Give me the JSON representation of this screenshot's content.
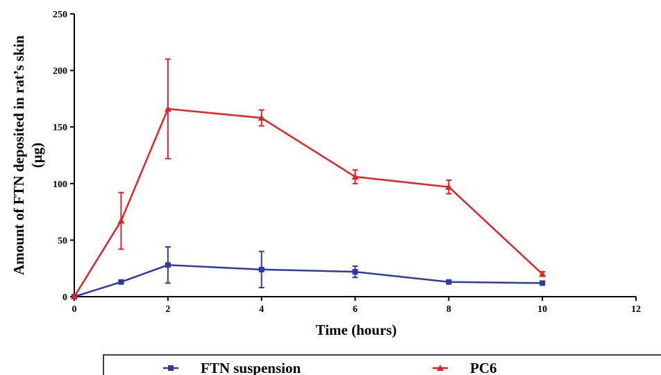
{
  "chart_data": {
    "type": "line",
    "xlabel": "Time (hours)",
    "ylabel_lines": [
      "Amount of FTN deposited in rat’s skin",
      "(µg)"
    ],
    "xlim": [
      0,
      12
    ],
    "ylim": [
      0,
      250
    ],
    "x_ticks": [
      0,
      2,
      4,
      6,
      8,
      10,
      12
    ],
    "y_ticks": [
      0,
      50,
      100,
      150,
      200,
      250
    ],
    "grid": false,
    "legend_position": "bottom",
    "series": [
      {
        "name": "FTN suspension",
        "color": "#2e3a9e",
        "marker": "square",
        "x": [
          0,
          1,
          2,
          4,
          6,
          8,
          10
        ],
        "y": [
          0,
          13,
          28,
          24,
          22,
          13,
          12
        ],
        "error": [
          0,
          1,
          16,
          16,
          5,
          1,
          1
        ]
      },
      {
        "name": "PC6",
        "color": "#e32227",
        "marker": "triangle",
        "x": [
          0,
          1,
          2,
          4,
          6,
          8,
          10
        ],
        "y": [
          0,
          67,
          166,
          158,
          106,
          97,
          20
        ],
        "error": [
          0,
          25,
          44,
          7,
          6,
          6,
          2
        ]
      }
    ]
  }
}
